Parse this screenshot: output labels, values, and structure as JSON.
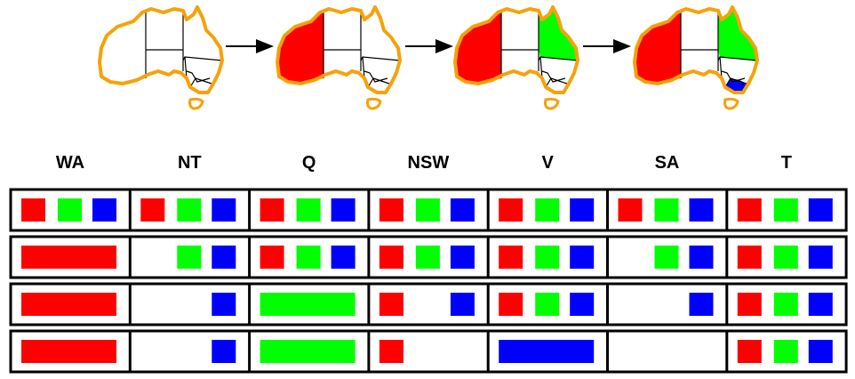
{
  "colors": {
    "red": "#ff0000",
    "green": "#00ff00",
    "blue": "#0000ff",
    "outline": "#f5a20a",
    "border": "#000000"
  },
  "map_steps": [
    {
      "WA": null,
      "Q": null,
      "V": null
    },
    {
      "WA": "red",
      "Q": null,
      "V": null
    },
    {
      "WA": "red",
      "Q": "green",
      "V": null
    },
    {
      "WA": "red",
      "Q": "green",
      "V": "blue"
    }
  ],
  "headers": [
    "WA",
    "NT",
    "Q",
    "NSW",
    "V",
    "SA",
    "T"
  ],
  "domains": [
    [
      [
        "red",
        "green",
        "blue"
      ],
      [
        "red",
        "green",
        "blue"
      ],
      [
        "red",
        "green",
        "blue"
      ],
      [
        "red",
        "green",
        "blue"
      ],
      [
        "red",
        "green",
        "blue"
      ],
      [
        "red",
        "green",
        "blue"
      ],
      [
        "red",
        "green",
        "blue"
      ]
    ],
    [
      [
        "red"
      ],
      [
        "green",
        "blue"
      ],
      [
        "red",
        "green",
        "blue"
      ],
      [
        "red",
        "green",
        "blue"
      ],
      [
        "red",
        "green",
        "blue"
      ],
      [
        "green",
        "blue"
      ],
      [
        "red",
        "green",
        "blue"
      ]
    ],
    [
      [
        "red"
      ],
      [
        "blue"
      ],
      [
        "green"
      ],
      [
        "red",
        "blue"
      ],
      [
        "red",
        "green",
        "blue"
      ],
      [
        "blue"
      ],
      [
        "red",
        "green",
        "blue"
      ]
    ],
    [
      [
        "red"
      ],
      [
        "blue"
      ],
      [
        "green"
      ],
      [
        "red"
      ],
      [
        "blue"
      ],
      [],
      [
        "red",
        "green",
        "blue"
      ]
    ]
  ]
}
